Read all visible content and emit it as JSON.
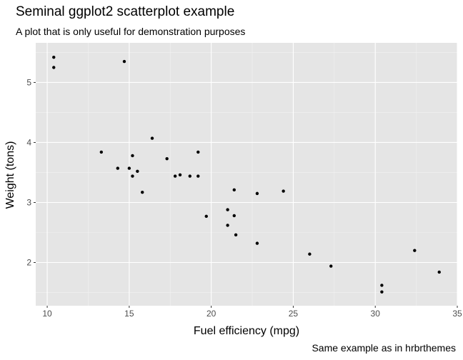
{
  "chart_data": {
    "type": "scatter",
    "title": "Seminal ggplot2 scatterplot example",
    "subtitle": "A plot that is only useful for demonstration purposes",
    "caption": "Same example as in hrbrthemes",
    "xlabel": "Fuel efficiency (mpg)",
    "ylabel": "Weight (tons)",
    "xlim": [
      9.3,
      35.0
    ],
    "ylim": [
      1.28,
      5.66
    ],
    "xticks": [
      10,
      15,
      20,
      25,
      30,
      35
    ],
    "yticks": [
      2,
      3,
      4,
      5
    ],
    "grid": true,
    "background": "#e5e5e5",
    "point_color": "#000000",
    "points": [
      {
        "x": 10.4,
        "y": 5.42
      },
      {
        "x": 10.4,
        "y": 5.25
      },
      {
        "x": 14.7,
        "y": 5.35
      },
      {
        "x": 13.3,
        "y": 3.84
      },
      {
        "x": 14.3,
        "y": 3.57
      },
      {
        "x": 15.0,
        "y": 3.57
      },
      {
        "x": 15.2,
        "y": 3.78
      },
      {
        "x": 15.2,
        "y": 3.44
      },
      {
        "x": 15.5,
        "y": 3.52
      },
      {
        "x": 15.8,
        "y": 3.17
      },
      {
        "x": 16.4,
        "y": 4.07
      },
      {
        "x": 17.3,
        "y": 3.73
      },
      {
        "x": 17.8,
        "y": 3.44
      },
      {
        "x": 18.1,
        "y": 3.46
      },
      {
        "x": 18.7,
        "y": 3.44
      },
      {
        "x": 19.2,
        "y": 3.84
      },
      {
        "x": 19.2,
        "y": 3.44
      },
      {
        "x": 19.7,
        "y": 2.77
      },
      {
        "x": 21.0,
        "y": 2.88
      },
      {
        "x": 21.0,
        "y": 2.62
      },
      {
        "x": 21.4,
        "y": 3.21
      },
      {
        "x": 21.4,
        "y": 2.78
      },
      {
        "x": 21.5,
        "y": 2.46
      },
      {
        "x": 22.8,
        "y": 3.15
      },
      {
        "x": 22.8,
        "y": 2.32
      },
      {
        "x": 24.4,
        "y": 3.19
      },
      {
        "x": 26.0,
        "y": 2.14
      },
      {
        "x": 27.3,
        "y": 1.94
      },
      {
        "x": 30.4,
        "y": 1.62
      },
      {
        "x": 30.4,
        "y": 1.51
      },
      {
        "x": 32.4,
        "y": 2.2
      },
      {
        "x": 33.9,
        "y": 1.84
      }
    ]
  }
}
